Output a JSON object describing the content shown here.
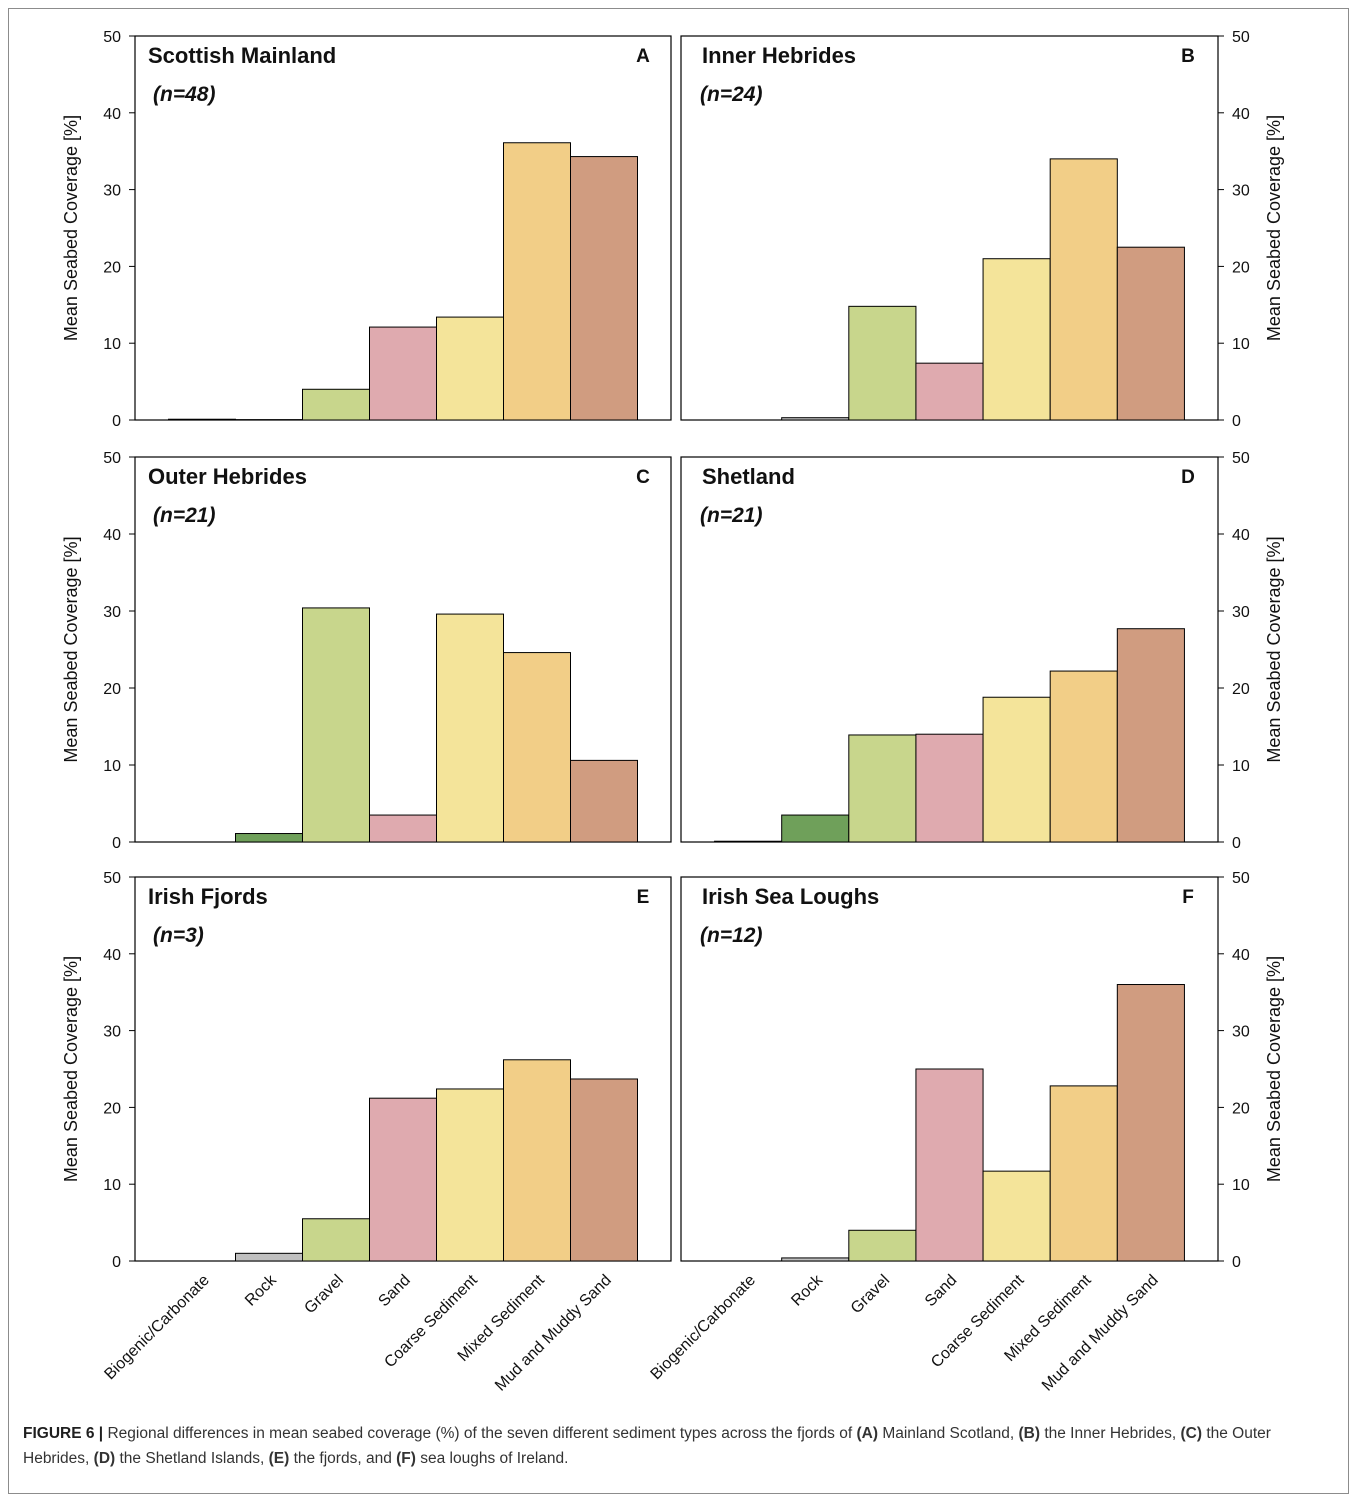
{
  "colors": {
    "Biogenic/Carbonate": "#5a7d3c",
    "Rock_default": "#6fa05a",
    "Rock_grey": "#c0c0c0",
    "Gravel": "#c8d68c",
    "Sand": "#dfaaaf",
    "Coarse Sediment": "#f4e49a",
    "Mixed Sediment": "#f2ce87",
    "Mud and Muddy Sand": "#d09c80"
  },
  "chart_data": [
    {
      "type": "bar",
      "title": "Scottish Mainland",
      "subtitle": "(n=48)",
      "panel_letter": "A",
      "ylabel": "Mean Seabed Coverage [%]",
      "ylim": [
        0,
        50
      ],
      "yticks": [
        "0",
        "10",
        "20",
        "30",
        "40",
        "50"
      ],
      "categories": [
        "Biogenic/Carbonate",
        "Rock",
        "Gravel",
        "Sand",
        "Coarse Sediment",
        "Mixed Sediment",
        "Mud and Muddy Sand"
      ],
      "values": [
        0.1,
        0.05,
        4.0,
        12.1,
        13.4,
        36.1,
        34.3
      ]
    },
    {
      "type": "bar",
      "title": "Inner Hebrides",
      "subtitle": "(n=24)",
      "panel_letter": "B",
      "ylabel": "Mean Seabed Coverage [%]",
      "ylim": [
        0,
        50
      ],
      "yticks": [
        "0",
        "10",
        "20",
        "30",
        "40",
        "50"
      ],
      "categories": [
        "Biogenic/Carbonate",
        "Rock",
        "Gravel",
        "Sand",
        "Coarse Sediment",
        "Mixed Sediment",
        "Mud and Muddy Sand"
      ],
      "values": [
        0,
        0.3,
        14.8,
        7.4,
        21.0,
        34.0,
        22.5
      ]
    },
    {
      "type": "bar",
      "title": "Outer Hebrides",
      "subtitle": "(n=21)",
      "panel_letter": "C",
      "ylabel": "Mean Seabed Coverage [%]",
      "ylim": [
        0,
        50
      ],
      "yticks": [
        "0",
        "10",
        "20",
        "30",
        "40",
        "50"
      ],
      "categories": [
        "Biogenic/Carbonate",
        "Rock",
        "Gravel",
        "Sand",
        "Coarse Sediment",
        "Mixed Sediment",
        "Mud and Muddy Sand"
      ],
      "values": [
        0,
        1.1,
        30.4,
        3.5,
        29.6,
        24.6,
        10.6
      ]
    },
    {
      "type": "bar",
      "title": "Shetland",
      "subtitle": "(n=21)",
      "panel_letter": "D",
      "ylabel": "Mean Seabed Coverage [%]",
      "ylim": [
        0,
        50
      ],
      "yticks": [
        "0",
        "10",
        "20",
        "30",
        "40",
        "50"
      ],
      "categories": [
        "Biogenic/Carbonate",
        "Rock",
        "Gravel",
        "Sand",
        "Coarse Sediment",
        "Mixed Sediment",
        "Mud and Muddy Sand"
      ],
      "values": [
        0.1,
        3.5,
        13.9,
        14.0,
        18.8,
        22.2,
        27.7
      ]
    },
    {
      "type": "bar",
      "title": "Irish Fjords",
      "subtitle": "(n=3)",
      "panel_letter": "E",
      "ylabel": "Mean Seabed Coverage [%]",
      "ylim": [
        0,
        50
      ],
      "yticks": [
        "0",
        "10",
        "20",
        "30",
        "40",
        "50"
      ],
      "categories": [
        "Biogenic/Carbonate",
        "Rock",
        "Gravel",
        "Sand",
        "Coarse Sediment",
        "Mixed Sediment",
        "Mud and Muddy Sand"
      ],
      "values": [
        0,
        1.0,
        5.5,
        21.2,
        22.4,
        26.2,
        23.7
      ],
      "xtick_labels": [
        "Biogenic/Carbonate",
        "Rock",
        "Gravel",
        "Sand",
        "Coarse Sediment",
        "Mixed Sediment",
        "Mud and Muddy Sand"
      ]
    },
    {
      "type": "bar",
      "title": "Irish Sea Loughs",
      "subtitle": "(n=12)",
      "panel_letter": "F",
      "ylabel": "Mean Seabed Coverage [%]",
      "ylim": [
        0,
        50
      ],
      "yticks": [
        "0",
        "10",
        "20",
        "30",
        "40",
        "50"
      ],
      "categories": [
        "Biogenic/Carbonate",
        "Rock",
        "Gravel",
        "Sand",
        "Coarse Sediment",
        "Mixed Sediment",
        "Mud and Muddy Sand"
      ],
      "values": [
        0,
        0.4,
        4.0,
        25.0,
        11.7,
        22.8,
        36.0
      ],
      "xtick_labels": [
        "Biogenic/Carbonate",
        "Rock",
        "Gravel",
        "Sand",
        "Coarse Sediment",
        "Mixed Sediment",
        "Mud and Muddy Sand"
      ]
    }
  ],
  "caption": {
    "label": "FIGURE 6 |",
    "t1": "Regional differences in mean seabed coverage (%) of the seven different sediment types across the fjords of",
    "a": "(A)",
    "t2": "Mainland Scotland,",
    "b": "(B)",
    "t3": "the Inner Hebrides,",
    "c": "(C)",
    "t4": "the Outer Hebrides,",
    "d": "(D)",
    "t5": "the Shetland Islands,",
    "e": "(E)",
    "t6": "the fjords, and",
    "f": "(F)",
    "t7": "sea loughs of Ireland."
  }
}
